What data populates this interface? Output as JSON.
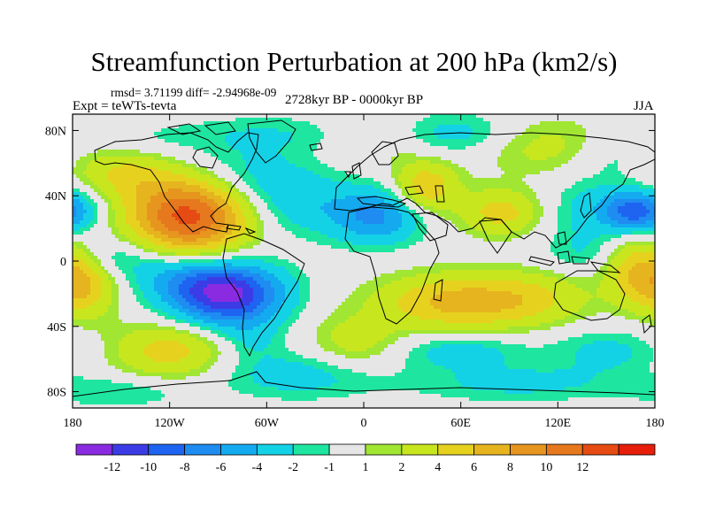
{
  "chart_data": {
    "type": "heatmap",
    "title": "Streamfunction Perturbation at 200 hPa (km2/s)",
    "stats": "rmsd= 3.71199 diff= -2.94968e-09",
    "experiment": "Expt = teWTs-tevta",
    "period": "2728kyr BP - 0000kyr BP",
    "season": "JJA",
    "x_range": [
      -180,
      180
    ],
    "y_range": [
      -90,
      90
    ],
    "x_ticks": [
      {
        "value": -180,
        "label": "180"
      },
      {
        "value": -120,
        "label": "120W"
      },
      {
        "value": -60,
        "label": "60W"
      },
      {
        "value": 0,
        "label": "0"
      },
      {
        "value": 60,
        "label": "60E"
      },
      {
        "value": 120,
        "label": "120E"
      },
      {
        "value": 180,
        "label": "180"
      }
    ],
    "y_ticks": [
      {
        "value": 80,
        "label": "80N"
      },
      {
        "value": 40,
        "label": "40N"
      },
      {
        "value": 0,
        "label": "0"
      },
      {
        "value": -40,
        "label": "40S"
      },
      {
        "value": -80,
        "label": "80S"
      }
    ],
    "colorbar": {
      "colors": [
        "#8a2be2",
        "#3c3ce6",
        "#1e64f0",
        "#1e8cf0",
        "#14aaf0",
        "#14d2e6",
        "#1ee6a0",
        "#e6e6e6",
        "#a0e632",
        "#c8e61e",
        "#e6d21e",
        "#e6b41e",
        "#e6961e",
        "#e6781e",
        "#e64b14",
        "#e61e0a"
      ],
      "labels": [
        "-12",
        "-10",
        "-8",
        "-6",
        "-4",
        "-2",
        "-1",
        "1",
        "2",
        "4",
        "6",
        "8",
        "10",
        "12"
      ]
    },
    "anomalies": [
      {
        "lon": -108,
        "lat": 28,
        "value": 13,
        "rlon": 26,
        "rlat": 17
      },
      {
        "lon": -150,
        "lat": 55,
        "value": 4,
        "rlon": 22,
        "rlat": 12
      },
      {
        "lon": -178,
        "lat": 30,
        "value": -4,
        "rlon": 14,
        "rlat": 10
      },
      {
        "lon": -140,
        "lat": 72,
        "value": -1.5,
        "rlon": 30,
        "rlat": 9
      },
      {
        "lon": -75,
        "lat": 52,
        "value": -3,
        "rlon": 28,
        "rlat": 14
      },
      {
        "lon": -40,
        "lat": 35,
        "value": -3,
        "rlon": 22,
        "rlat": 14
      },
      {
        "lon": -55,
        "lat": 78,
        "value": -1.8,
        "rlon": 40,
        "rlat": 8
      },
      {
        "lon": 8,
        "lat": 28,
        "value": -6.5,
        "rlon": 20,
        "rlat": 12
      },
      {
        "lon": 10,
        "lat": 75,
        "value": 2,
        "rlon": 22,
        "rlat": 10
      },
      {
        "lon": 38,
        "lat": 45,
        "value": 6,
        "rlon": 14,
        "rlat": 11
      },
      {
        "lon": 55,
        "lat": 78,
        "value": -3,
        "rlon": 28,
        "rlat": 9
      },
      {
        "lon": 85,
        "lat": 30,
        "value": 5,
        "rlon": 18,
        "rlat": 10
      },
      {
        "lon": 145,
        "lat": 32,
        "value": -3,
        "rlon": 22,
        "rlat": 13
      },
      {
        "lon": 165,
        "lat": 30,
        "value": -6,
        "rlon": 12,
        "rlat": 8
      },
      {
        "lon": 115,
        "lat": 70,
        "value": 3,
        "rlon": 30,
        "rlat": 12
      },
      {
        "lon": 150,
        "lat": 65,
        "value": -2,
        "rlon": 20,
        "rlat": 10
      },
      {
        "lon": -155,
        "lat": 2,
        "value": -3,
        "rlon": 22,
        "rlat": 9
      },
      {
        "lon": -172,
        "lat": -15,
        "value": 5,
        "rlon": 14,
        "rlat": 14
      },
      {
        "lon": -85,
        "lat": -20,
        "value": -13,
        "rlon": 24,
        "rlat": 13
      },
      {
        "lon": -115,
        "lat": -10,
        "value": -3,
        "rlon": 20,
        "rlat": 10
      },
      {
        "lon": -120,
        "lat": -55,
        "value": 5,
        "rlon": 25,
        "rlat": 12
      },
      {
        "lon": -70,
        "lat": -48,
        "value": -2,
        "rlon": 15,
        "rlat": 10
      },
      {
        "lon": -40,
        "lat": -70,
        "value": -3,
        "rlon": 35,
        "rlat": 10
      },
      {
        "lon": -5,
        "lat": -50,
        "value": 3,
        "rlon": 20,
        "rlat": 12
      },
      {
        "lon": 60,
        "lat": -25,
        "value": 7,
        "rlon": 35,
        "rlat": 12
      },
      {
        "lon": 60,
        "lat": -55,
        "value": -3,
        "rlon": 28,
        "rlat": 8
      },
      {
        "lon": 110,
        "lat": -22,
        "value": 2.5,
        "rlon": 24,
        "rlat": 12
      },
      {
        "lon": 135,
        "lat": 5,
        "value": -2,
        "rlon": 18,
        "rlat": 10
      },
      {
        "lon": 170,
        "lat": -5,
        "value": 6,
        "rlon": 15,
        "rlat": 15
      },
      {
        "lon": 150,
        "lat": -55,
        "value": -2.5,
        "rlon": 25,
        "rlat": 10
      },
      {
        "lon": 95,
        "lat": -75,
        "value": -2.5,
        "rlon": 45,
        "rlat": 8
      },
      {
        "lon": -150,
        "lat": -80,
        "value": -2,
        "rlon": 30,
        "rlat": 7
      }
    ]
  }
}
